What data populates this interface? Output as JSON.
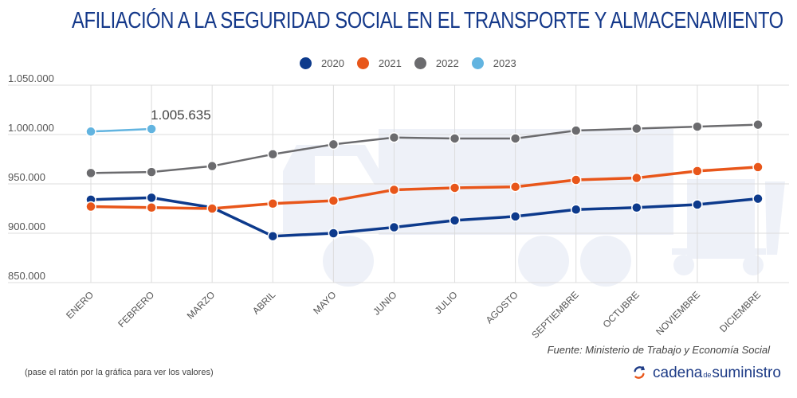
{
  "header": {
    "title": "AFILIACIÓN A LA SEGURIDAD SOCIAL EN EL TRANSPORTE Y ALMACENAMIENTO"
  },
  "legend": [
    {
      "label": "2020",
      "color": "#0d3a8c"
    },
    {
      "label": "2021",
      "color": "#e8561a"
    },
    {
      "label": "2022",
      "color": "#6b6b6e"
    },
    {
      "label": "2023",
      "color": "#62b4e0"
    }
  ],
  "footer": {
    "source": "Fuente: Ministerio de Trabajo y Economía Social",
    "hint": "(pase el ratón por la gráfica para ver los valores)",
    "brand_part1": "cadena",
    "brand_part2": "de",
    "brand_part3": "suministro"
  },
  "chart_data": {
    "type": "line",
    "title": "AFILIACIÓN A LA SEGURIDAD SOCIAL EN EL TRANSPORTE Y ALMACENAMIENTO",
    "xlabel": "",
    "ylabel": "",
    "categories": [
      "ENERO",
      "FEBRERO",
      "MARZO",
      "ABRIL",
      "MAYO",
      "JUNIO",
      "JULIO",
      "AGOSTO",
      "SEPTIEMBRE",
      "OCTUBRE",
      "NOVIEMBRE",
      "DICIEMBRE"
    ],
    "ylim": [
      850000,
      1050000
    ],
    "yticks": [
      850000,
      900000,
      950000,
      1000000,
      1050000
    ],
    "ytick_labels": [
      "850.000",
      "900.000",
      "950.000",
      "1.000.000",
      "1.050.000"
    ],
    "grid": true,
    "legend_position": "top-center",
    "series": [
      {
        "name": "2020",
        "color": "#0d3a8c",
        "values": [
          934000,
          936000,
          926000,
          897000,
          900000,
          906000,
          913000,
          917000,
          924000,
          926000,
          929000,
          935000
        ]
      },
      {
        "name": "2021",
        "color": "#e8561a",
        "values": [
          927000,
          926000,
          925000,
          930000,
          933000,
          944000,
          946000,
          947000,
          954000,
          956000,
          963000,
          967000
        ]
      },
      {
        "name": "2022",
        "color": "#6b6b6e",
        "values": [
          961000,
          962000,
          968000,
          980000,
          990000,
          997000,
          996000,
          996000,
          1004000,
          1006000,
          1008000,
          1010000
        ]
      },
      {
        "name": "2023",
        "color": "#62b4e0",
        "values": [
          1003000,
          1005635
        ]
      }
    ],
    "annotations": [
      {
        "series": "2023",
        "category": "FEBRERO",
        "text": "1.005.635"
      }
    ]
  }
}
